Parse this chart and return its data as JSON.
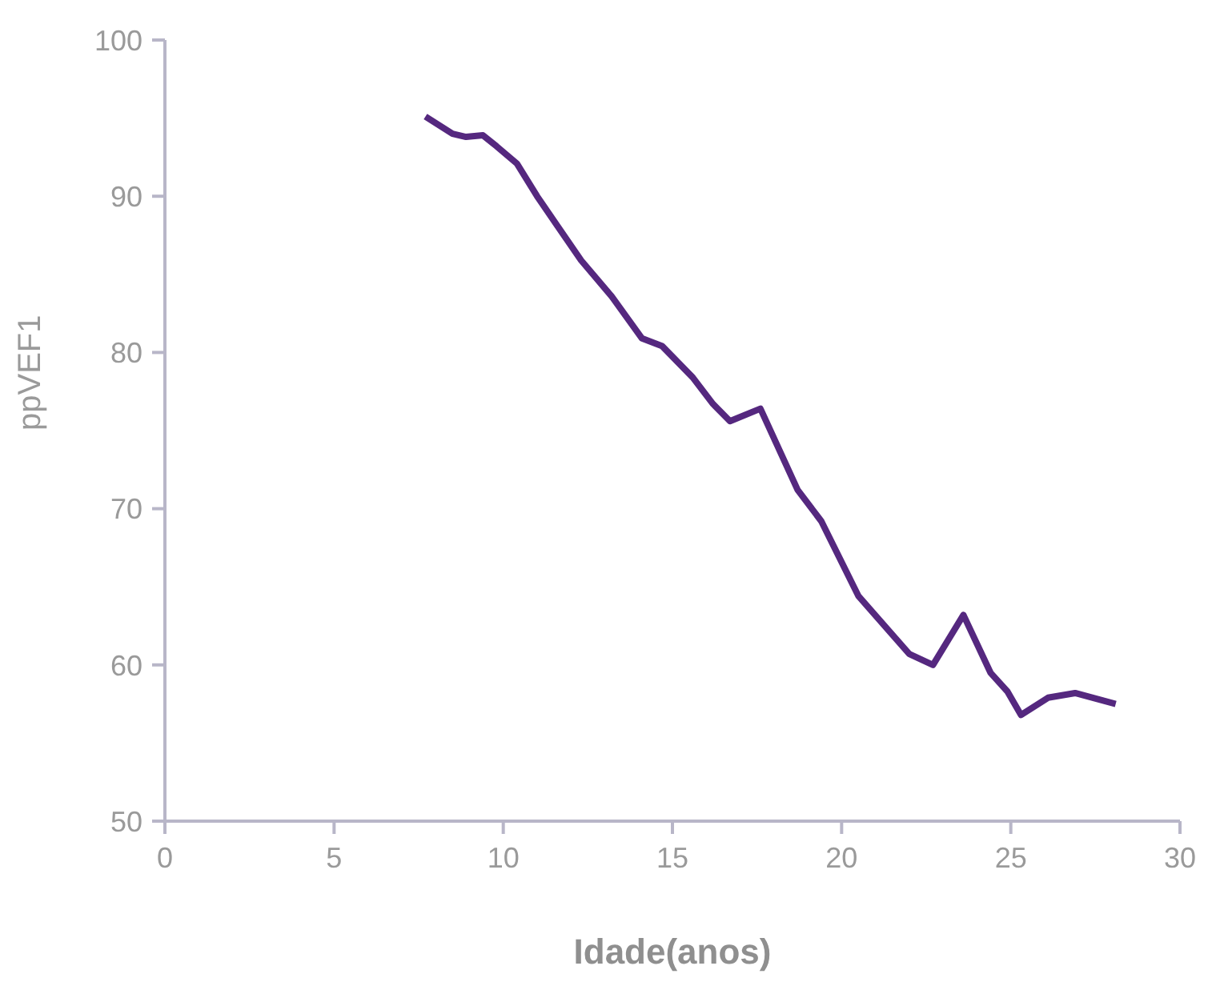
{
  "chart_data": {
    "type": "line",
    "xlabel": "Idade(anos)",
    "ylabel": "ppVEF1",
    "xlim": [
      0,
      30
    ],
    "xticks": [
      0,
      5,
      10,
      15,
      20,
      25,
      30
    ],
    "ylim": [
      50,
      100
    ],
    "yticks": [
      50,
      60,
      70,
      80,
      90,
      100
    ],
    "grid": false,
    "legend": false,
    "marker": "none",
    "line_style": "solid",
    "series": [
      {
        "color": "#55287f",
        "x": [
          7.7,
          8.5,
          8.9,
          9.4,
          9.8,
          10.4,
          11.0,
          11.6,
          12.3,
          13.2,
          14.1,
          14.7,
          15.6,
          16.2,
          16.7,
          17.6,
          18.7,
          19.4,
          20.5,
          22.0,
          22.7,
          23.6,
          24.4,
          24.9,
          25.3,
          26.1,
          26.9,
          28.1
        ],
        "values": [
          95.1,
          94.0,
          93.8,
          93.9,
          93.2,
          92.1,
          90.0,
          88.1,
          85.9,
          83.6,
          80.9,
          80.4,
          78.4,
          76.7,
          75.6,
          76.4,
          71.2,
          69.2,
          64.4,
          60.7,
          60.0,
          63.2,
          59.5,
          58.3,
          56.8,
          57.9,
          58.2,
          57.5
        ]
      }
    ]
  }
}
